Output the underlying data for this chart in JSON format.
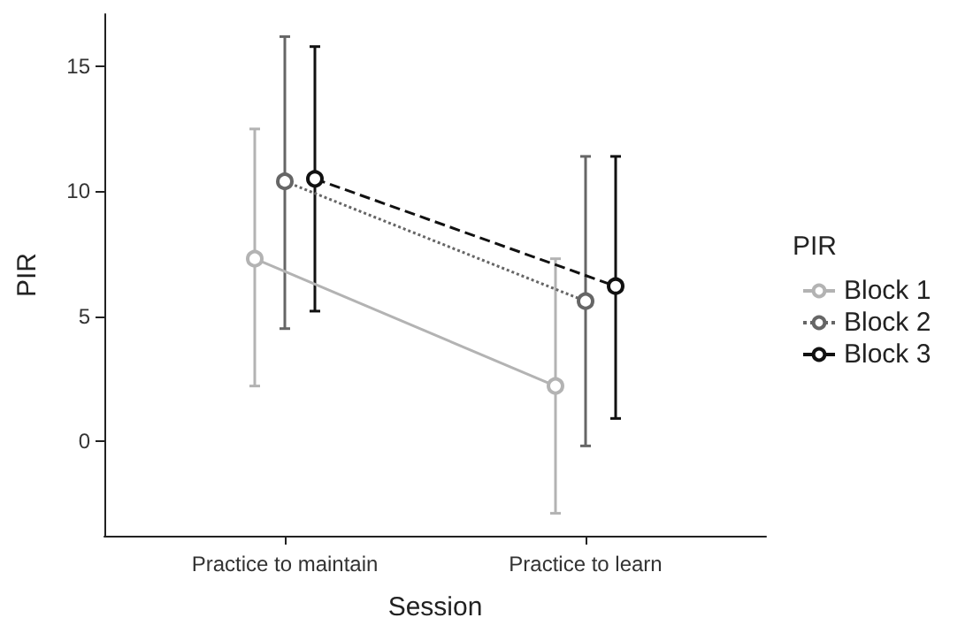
{
  "chart_data": {
    "type": "line",
    "xlabel": "Session",
    "ylabel": "PIR",
    "legend_title": "PIR",
    "categories": [
      "Practice to maintain",
      "Practice to learn"
    ],
    "ylim": [
      -3.8,
      17.1
    ],
    "yticks": [
      0,
      5,
      10,
      15
    ],
    "grid": false,
    "legend": "right",
    "marker": "circle",
    "series": [
      {
        "name": "Block 1",
        "color": "#b3b3b3",
        "line_style": "solid",
        "values": [
          7.3,
          2.2
        ],
        "errors": [
          [
            2.2,
            12.5
          ],
          [
            -2.9,
            7.3
          ]
        ]
      },
      {
        "name": "Block 2",
        "color": "#666666",
        "line_style": "dotted",
        "values": [
          10.4,
          5.6
        ],
        "errors": [
          [
            4.5,
            16.2
          ],
          [
            -0.2,
            11.4
          ]
        ]
      },
      {
        "name": "Block 3",
        "color": "#111111",
        "line_style": "dashed",
        "values": [
          10.5,
          6.2
        ],
        "errors": [
          [
            5.2,
            15.8
          ],
          [
            0.9,
            11.4
          ]
        ]
      }
    ]
  }
}
